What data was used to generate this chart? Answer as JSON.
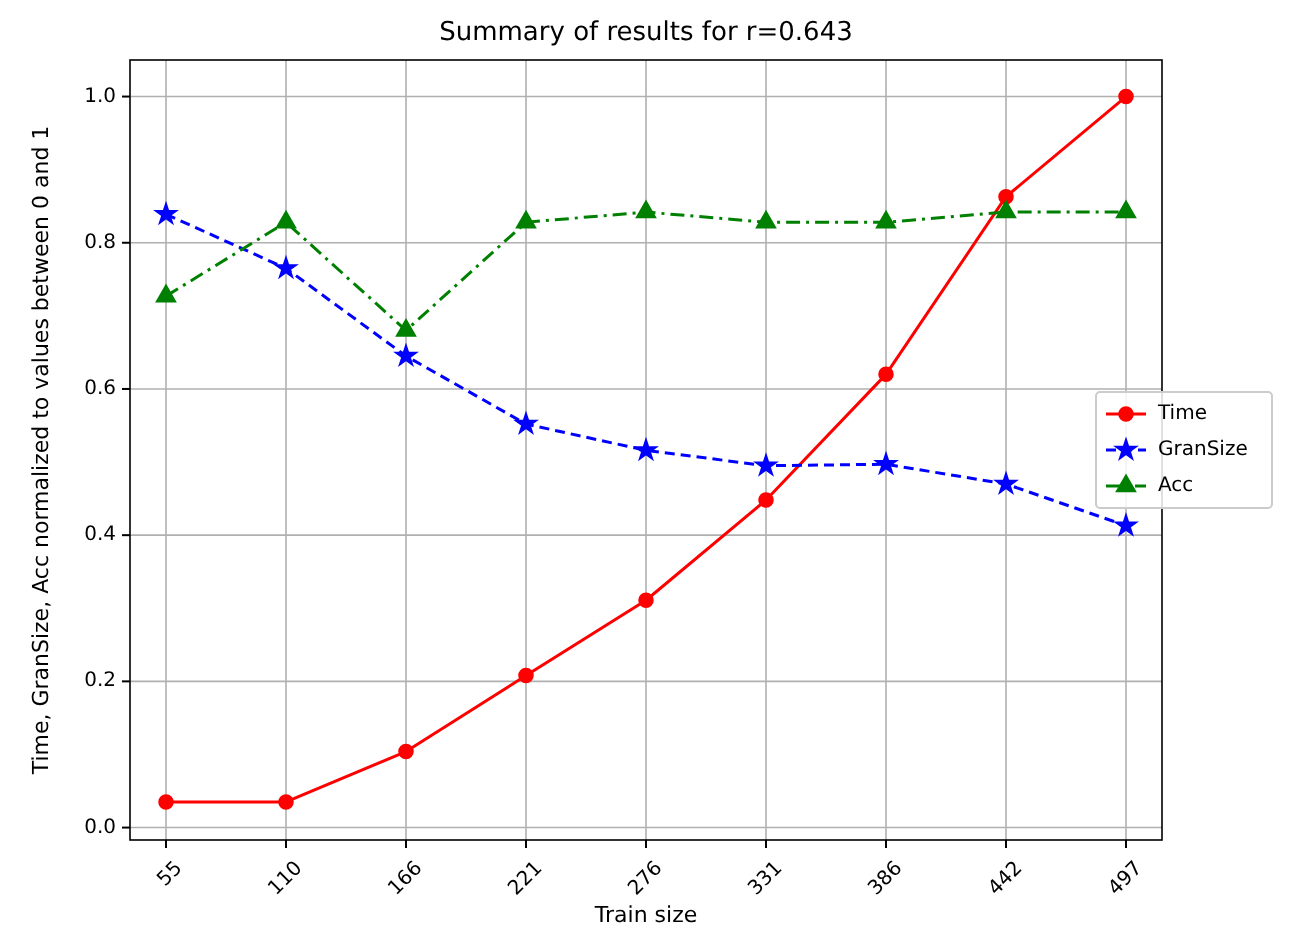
{
  "chart_data": {
    "type": "line",
    "title": "Summary of results for r=0.643",
    "xlabel": "Train size",
    "ylabel": "Time, GranSize, Acc normalized to values between 0 and 1",
    "categories": [
      "55",
      "110",
      "166",
      "221",
      "276",
      "331",
      "386",
      "442",
      "497"
    ],
    "series": [
      {
        "name": "Time",
        "color": "#ff0000",
        "marker": "circle",
        "line_style": "solid",
        "values": [
          0.035,
          0.035,
          0.104,
          0.208,
          0.311,
          0.448,
          0.62,
          0.863,
          1.0
        ]
      },
      {
        "name": "GranSize",
        "color": "#0000ff",
        "marker": "star",
        "line_style": "dashed",
        "values": [
          0.839,
          0.765,
          0.645,
          0.552,
          0.516,
          0.495,
          0.497,
          0.47,
          0.413
        ]
      },
      {
        "name": "Acc",
        "color": "#008000",
        "marker": "triangle",
        "line_style": "dashdot",
        "values": [
          0.727,
          0.828,
          0.68,
          0.828,
          0.842,
          0.828,
          0.828,
          0.842,
          0.842
        ]
      }
    ],
    "ylim": [
      -0.017,
      1.05
    ],
    "yticks": [
      {
        "value": 0,
        "label": "0.0"
      },
      {
        "value": 0.2,
        "label": "0.2"
      },
      {
        "value": 0.4,
        "label": "0.4"
      },
      {
        "value": 0.6,
        "label": "0.6"
      },
      {
        "value": 0.8,
        "label": "0.8"
      },
      {
        "value": 1,
        "label": "1.0"
      }
    ],
    "grid": true,
    "legend": "right"
  }
}
